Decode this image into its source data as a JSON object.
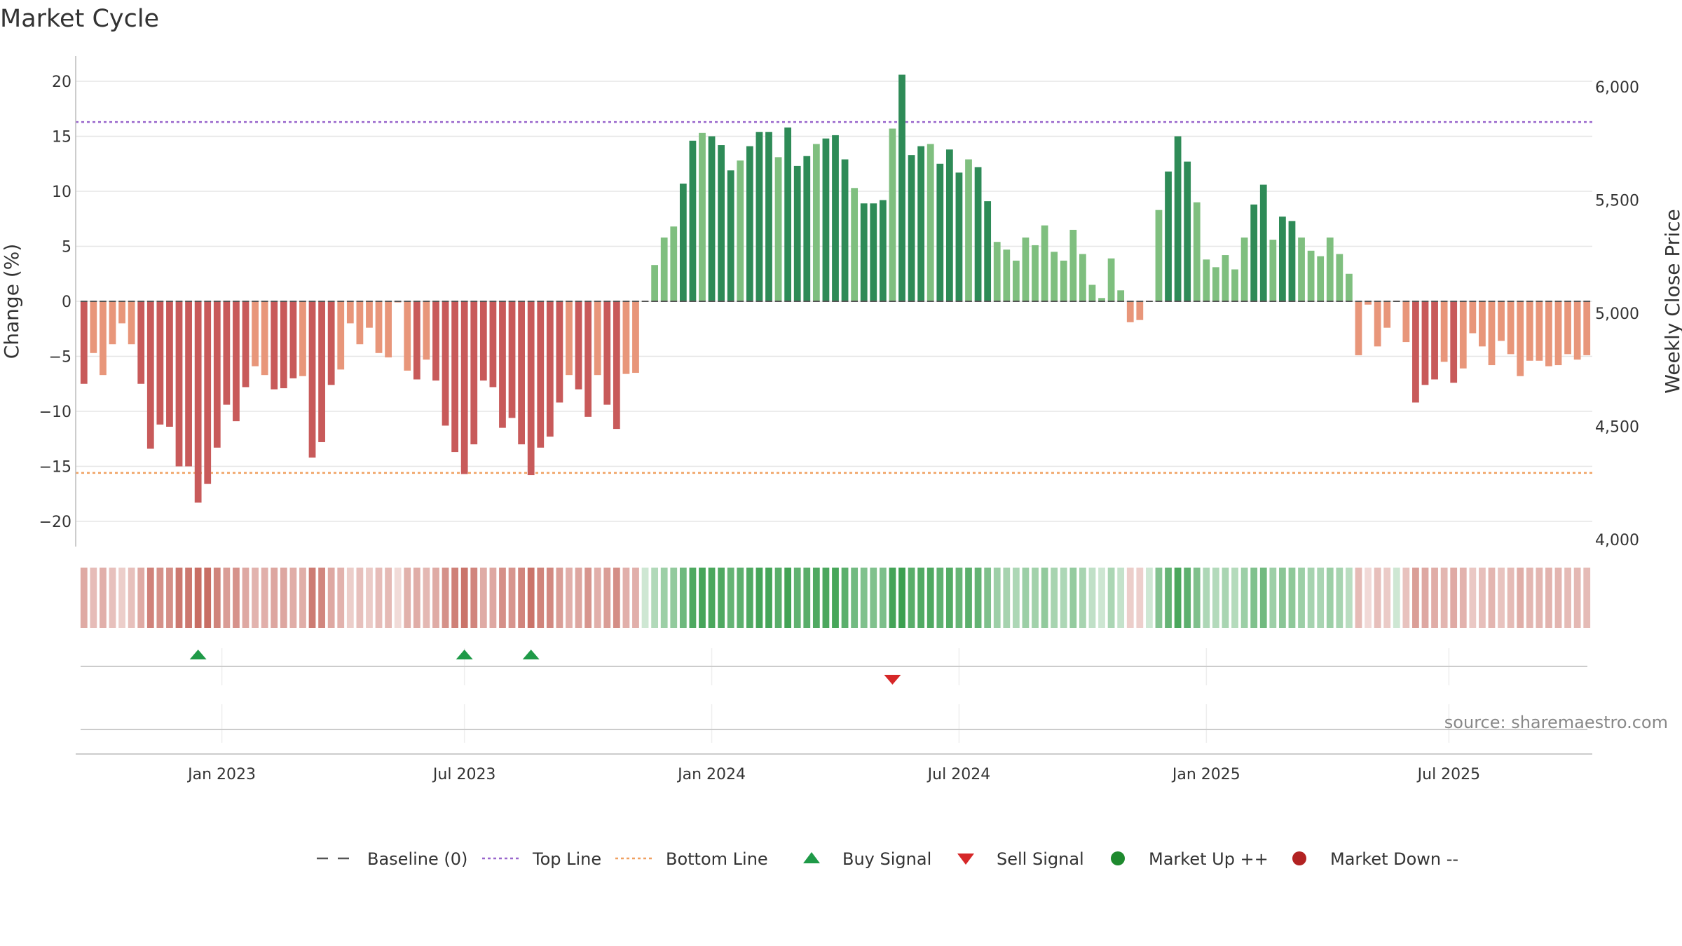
{
  "chart_data": {
    "type": "bar",
    "title": "Market Cycle",
    "ylabel": "Change (%)",
    "y2label": "Weekly Close Price",
    "ylim": [
      -22,
      22
    ],
    "y2lim": [
      4000,
      6100
    ],
    "yticks": [
      20,
      15,
      10,
      5,
      0,
      -5,
      -10,
      -15,
      -20
    ],
    "ytick_labels": [
      "20",
      "15",
      "10",
      "5",
      "0",
      "−5",
      "−10",
      "−15",
      "−20"
    ],
    "y2ticks": [
      6000,
      5500,
      5000,
      4500,
      4000
    ],
    "y2tick_labels": [
      "6,000",
      "5,500",
      "5,000",
      "4,500",
      "4,000"
    ],
    "x_tick_labels": [
      "Jan 2023",
      "Jul 2023",
      "Jan 2024",
      "Jul 2024",
      "Jan 2025",
      "Jul 2025"
    ],
    "x_tick_weeks": [
      14.5,
      40,
      66,
      92,
      118,
      143.5
    ],
    "top_line": 16.3,
    "bottom_line": -15.6,
    "grid": true,
    "legend_position": "bottom",
    "values": [
      -7.5,
      -4.7,
      -6.7,
      -3.9,
      -2,
      -3.9,
      -7.5,
      -13.4,
      -11.2,
      -11.4,
      -15,
      -15,
      -18.3,
      -16.6,
      -13.3,
      -9.4,
      -10.9,
      -7.8,
      -5.9,
      -6.7,
      -8,
      -7.9,
      -7,
      -6.8,
      -14.2,
      -12.8,
      -7.6,
      -6.2,
      -2,
      -3.9,
      -2.4,
      -4.7,
      -5.1,
      -0.1,
      -6.3,
      -7.1,
      -5.3,
      -7.2,
      -11.3,
      -13.7,
      -15.7,
      -13,
      -7.2,
      -7.8,
      -11.5,
      -10.6,
      -13,
      -15.8,
      -13.3,
      -12.3,
      -9.2,
      -6.7,
      -8,
      -10.5,
      -6.7,
      -9.4,
      -11.6,
      -6.6,
      -6.5,
      0,
      3.3,
      5.8,
      6.8,
      10.7,
      14.6,
      15.3,
      15,
      14.2,
      11.9,
      12.8,
      14.1,
      15.4,
      15.4,
      13.1,
      15.8,
      12.3,
      13.2,
      14.3,
      14.8,
      15.1,
      12.9,
      10.3,
      8.9,
      8.9,
      9.2,
      15.7,
      20.6,
      13.3,
      14.1,
      14.3,
      12.5,
      13.8,
      11.7,
      12.9,
      12.2,
      9.1,
      5.4,
      4.7,
      3.7,
      5.8,
      5.1,
      6.9,
      4.5,
      3.7,
      6.5,
      4.3,
      1.5,
      0.3,
      3.9,
      1,
      -1.9,
      -1.7,
      0,
      8.3,
      11.8,
      15,
      12.7,
      9,
      3.8,
      3.1,
      4.2,
      2.9,
      5.8,
      8.8,
      10.6,
      5.6,
      7.7,
      7.3,
      5.8,
      4.6,
      4.1,
      5.8,
      4.3,
      2.5,
      -4.9,
      -0.3,
      -4.1,
      -2.4,
      0,
      -3.7,
      -9.2,
      -7.6,
      -7.1,
      -5.5,
      -7.4,
      -6.1,
      -2.9,
      -4.1,
      -5.8,
      -3.6,
      -4.8,
      -6.8,
      -5.4,
      -5.4,
      -5.9,
      -5.8,
      -4.8,
      -5.3,
      -4.9
    ],
    "signals": [
      {
        "type": "buy",
        "week": 12
      },
      {
        "type": "buy",
        "week": 40
      },
      {
        "type": "buy",
        "week": 47
      },
      {
        "type": "sell",
        "week": 85
      }
    ],
    "legend": [
      {
        "name": "Baseline (0)",
        "marker": "dash",
        "color": "#555555"
      },
      {
        "name": "Top Line",
        "marker": "dotted-line",
        "color": "#9966cc"
      },
      {
        "name": "Bottom Line",
        "marker": "dotted-line",
        "color": "#f0a060"
      },
      {
        "name": "Buy Signal",
        "marker": "triangle-up",
        "color": "#1f9a48"
      },
      {
        "name": "Sell Signal",
        "marker": "triangle-down",
        "color": "#d62728"
      },
      {
        "name": "Market Up ++",
        "marker": "circle",
        "color": "#1e8a2e"
      },
      {
        "name": "Market Down --",
        "marker": "circle",
        "color": "#b22222"
      }
    ],
    "colors": {
      "up_strong": "#2e8b57",
      "up_weak": "#7fbf7f",
      "down_strong": "#c85a5a",
      "down_weak": "#e8967a",
      "top_line": "#9966cc",
      "bottom_line": "#f0a060",
      "baseline": "#555555",
      "buy": "#1f9a48",
      "sell": "#d62728"
    },
    "source": "source: sharemaestro.com"
  }
}
